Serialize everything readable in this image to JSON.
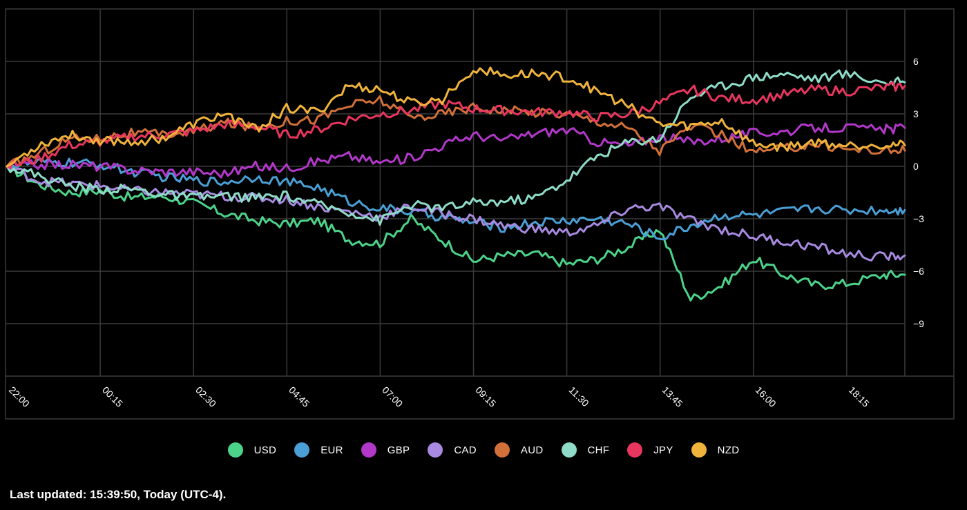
{
  "footer": {
    "text": "Last updated: 15:39:50, Today (UTC-4)."
  },
  "chart_data": {
    "type": "line",
    "ylim": [
      -12,
      9
    ],
    "y_ticks": [
      6,
      3,
      0,
      -3,
      -6,
      -9
    ],
    "y_tick_labels": [
      "6",
      "3",
      "0",
      "−3",
      "−6",
      "−9"
    ],
    "x_tick_labels": [
      "22:00",
      "00:15",
      "02:30",
      "04:45",
      "07:00",
      "09:15",
      "11:30",
      "13:45",
      "16:00",
      "18:15"
    ],
    "grid": true,
    "legend_position": "bottom",
    "x": [
      "22:00",
      "22:45",
      "23:30",
      "00:15",
      "01:00",
      "01:45",
      "02:30",
      "03:15",
      "04:00",
      "04:45",
      "05:30",
      "06:15",
      "07:00",
      "07:45",
      "08:30",
      "09:15",
      "10:00",
      "10:45",
      "11:30",
      "12:15",
      "13:00",
      "13:45",
      "14:30",
      "15:15",
      "16:00",
      "16:45",
      "17:30",
      "18:15",
      "19:00",
      "19:30"
    ],
    "series": [
      {
        "name": "USD",
        "color": "#4cd38a",
        "values": [
          0,
          -1.0,
          -1.5,
          -1.4,
          -1.8,
          -1.7,
          -2.1,
          -2.7,
          -3.1,
          -3.3,
          -3.1,
          -4.2,
          -4.4,
          -3.0,
          -4.2,
          -5.4,
          -5.1,
          -5.0,
          -5.6,
          -5.3,
          -4.6,
          -3.6,
          -7.6,
          -6.8,
          -5.3,
          -6.2,
          -6.8,
          -6.7,
          -6.2,
          -6.2
        ]
      },
      {
        "name": "EUR",
        "color": "#4a9fd6",
        "values": [
          0,
          0.2,
          0.2,
          0.1,
          -0.3,
          -0.6,
          -0.8,
          -0.9,
          -0.6,
          -0.9,
          -1.2,
          -2.0,
          -2.4,
          -2.6,
          -2.9,
          -3.2,
          -3.5,
          -3.2,
          -3.1,
          -3.0,
          -3.3,
          -4.1,
          -3.4,
          -2.8,
          -2.8,
          -2.6,
          -2.4,
          -2.5,
          -2.5,
          -2.5
        ]
      },
      {
        "name": "GBP",
        "color": "#b238c9",
        "values": [
          0,
          0.1,
          0.1,
          0.0,
          -0.2,
          -0.3,
          -0.3,
          -0.4,
          0.0,
          -0.1,
          0.3,
          0.6,
          0.2,
          0.5,
          1.2,
          1.8,
          1.5,
          1.9,
          2.1,
          1.4,
          1.2,
          1.7,
          1.4,
          1.6,
          1.9,
          2.0,
          2.2,
          2.2,
          2.1,
          2.2
        ]
      },
      {
        "name": "CAD",
        "color": "#a88ae0",
        "values": [
          0,
          -0.8,
          -1.0,
          -1.1,
          -1.4,
          -1.5,
          -1.6,
          -1.7,
          -1.8,
          -1.9,
          -2.3,
          -2.6,
          -2.9,
          -2.3,
          -2.7,
          -3.0,
          -3.4,
          -3.6,
          -3.8,
          -3.4,
          -2.4,
          -2.3,
          -3.1,
          -3.6,
          -4.0,
          -4.3,
          -4.6,
          -5.0,
          -5.2,
          -5.1
        ]
      },
      {
        "name": "AUD",
        "color": "#d2703a",
        "values": [
          0,
          0.7,
          1.6,
          1.6,
          1.9,
          1.8,
          2.0,
          2.5,
          2.2,
          2.6,
          2.7,
          3.5,
          3.8,
          2.8,
          3.0,
          3.4,
          3.2,
          3.1,
          3.0,
          2.6,
          2.2,
          0.9,
          2.3,
          1.8,
          0.8,
          1.0,
          1.3,
          1.0,
          0.9,
          0.9
        ]
      },
      {
        "name": "CHF",
        "color": "#8fdcc8",
        "values": [
          0,
          -0.5,
          -1.1,
          -1.3,
          -1.3,
          -1.6,
          -1.8,
          -1.7,
          -1.8,
          -1.7,
          -2.2,
          -2.6,
          -3.1,
          -2.2,
          -2.4,
          -2.1,
          -2.0,
          -1.8,
          -0.8,
          0.6,
          1.4,
          1.6,
          4.0,
          4.6,
          5.1,
          5.3,
          5.0,
          5.3,
          4.8,
          4.8
        ]
      },
      {
        "name": "JPY",
        "color": "#e8365e",
        "values": [
          0,
          0.4,
          1.2,
          1.4,
          1.7,
          1.8,
          2.0,
          2.4,
          2.3,
          1.8,
          2.1,
          2.7,
          3.0,
          3.2,
          3.6,
          3.3,
          3.2,
          3.1,
          3.1,
          2.8,
          3.0,
          3.6,
          4.4,
          3.9,
          3.8,
          4.1,
          4.4,
          4.3,
          4.5,
          4.6
        ]
      },
      {
        "name": "NZD",
        "color": "#f0b43c",
        "values": [
          0,
          1.2,
          1.8,
          1.5,
          1.4,
          1.6,
          2.4,
          3.0,
          2.1,
          3.3,
          3.1,
          4.6,
          4.4,
          3.6,
          3.8,
          5.6,
          5.2,
          5.3,
          5.1,
          4.3,
          3.4,
          2.4,
          2.3,
          2.6,
          1.3,
          1.1,
          1.4,
          1.2,
          1.3,
          1.2
        ]
      }
    ]
  }
}
